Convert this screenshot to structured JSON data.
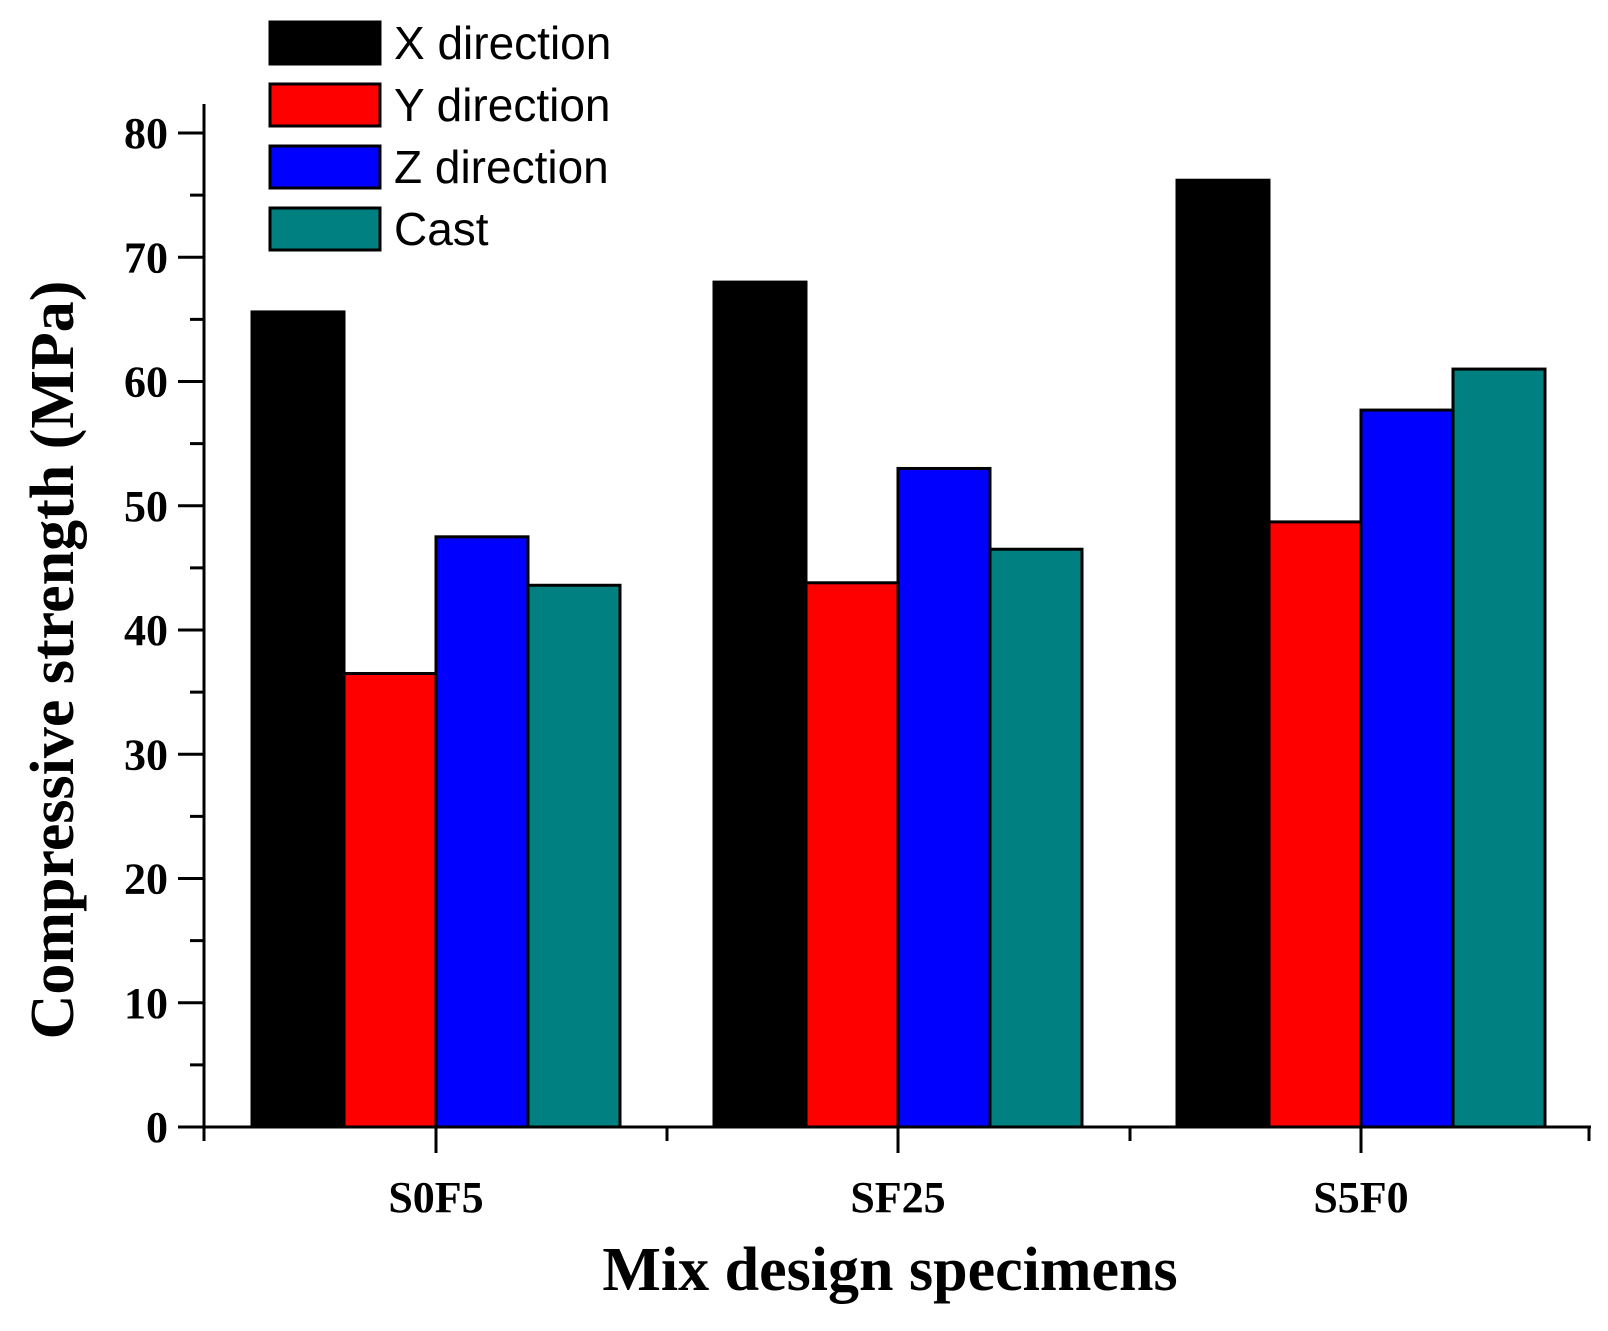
{
  "chart_data": {
    "type": "bar",
    "title": "",
    "xlabel": "Mix design specimens",
    "ylabel": "Compressive strength (MPa)",
    "categories": [
      "S0F5",
      "SF25",
      "S5F0"
    ],
    "series": [
      {
        "name": "X direction",
        "color": "#000000",
        "values": [
          65.6,
          68.0,
          76.2
        ]
      },
      {
        "name": "Y direction",
        "color": "#ff0000",
        "values": [
          36.5,
          43.8,
          48.7
        ]
      },
      {
        "name": "Z direction",
        "color": "#0000ff",
        "values": [
          47.5,
          53.0,
          57.7
        ]
      },
      {
        "name": "Cast",
        "color": "#008080",
        "values": [
          43.6,
          46.5,
          61.0
        ]
      }
    ],
    "ylim": [
      0,
      80
    ],
    "yticks": [
      "0",
      "10",
      "20",
      "30",
      "40",
      "50",
      "60",
      "70",
      "80"
    ],
    "grid": false,
    "legend_position": "top-left"
  }
}
